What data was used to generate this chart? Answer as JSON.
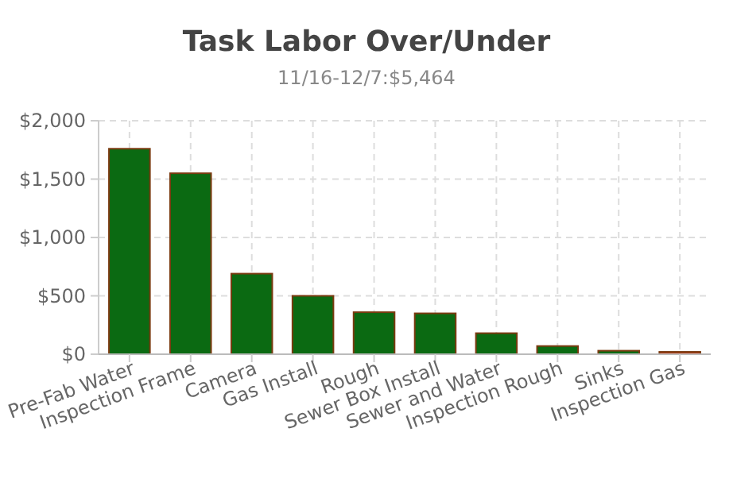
{
  "chart_data": {
    "type": "bar",
    "title": "Task Labor Over/Under",
    "subtitle": "11/16-12/7:$5,464",
    "categories": [
      "Pre-Fab Water",
      "Inspection Frame",
      "Camera",
      "Gas Install",
      "Rough",
      "Sewer Box Install",
      "Sewer and Water",
      "Inspection Rough",
      "Sinks",
      "Inspection Gas"
    ],
    "values": [
      1760,
      1550,
      690,
      500,
      360,
      350,
      180,
      70,
      30,
      20
    ],
    "colors": [
      "#0b6a12",
      "#0b6a12",
      "#0b6a12",
      "#0b6a12",
      "#0b6a12",
      "#0b6a12",
      "#0b6a12",
      "#0b6a12",
      "#0b6a12",
      "#c0401a"
    ],
    "ylim": [
      0,
      2000
    ],
    "yticks": [
      {
        "value": 0,
        "label": "$0"
      },
      {
        "value": 500,
        "label": "$500"
      },
      {
        "value": 1000,
        "label": "$1,000"
      },
      {
        "value": 1500,
        "label": "$1,500"
      },
      {
        "value": 2000,
        "label": "$2,000"
      }
    ],
    "grid": true
  }
}
